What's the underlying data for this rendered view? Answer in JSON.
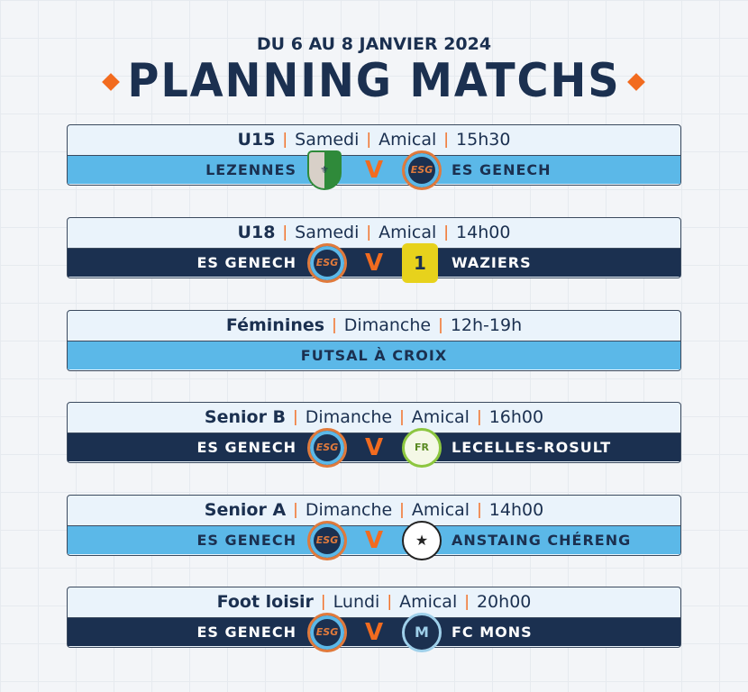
{
  "header": {
    "subtitle": "DU 6 AU 8 JANVIER 2024",
    "title": "PLANNING MATCHS"
  },
  "colors": {
    "navy": "#1b3050",
    "light_blue": "#5bb8e8",
    "orange": "#f26b1f"
  },
  "matches": [
    {
      "category": "U15",
      "details": [
        "Samedi",
        "Amical",
        "15h30"
      ],
      "bar": "light",
      "home": "LEZENNES",
      "home_logo": "lezennes-crest-icon",
      "vs": "V",
      "away": "ES GENECH",
      "away_logo": "esg-crest-icon"
    },
    {
      "category": "U18",
      "details": [
        "Samedi",
        "Amical",
        "14h00"
      ],
      "bar": "dark",
      "home": "ES GENECH",
      "home_logo": "esg-crest-icon",
      "vs": "V",
      "away": "WAZIERS",
      "away_logo": "waziers-jersey-icon"
    },
    {
      "category": "Féminines",
      "details": [
        "Dimanche",
        "12h-19h"
      ],
      "bar": "light",
      "center": "FUTSAL À CROIX"
    },
    {
      "category": "Senior B",
      "details": [
        "Dimanche",
        "Amical",
        "16h00"
      ],
      "bar": "dark",
      "home": "ES GENECH",
      "home_logo": "esg-crest-icon",
      "vs": "V",
      "away": "LECELLES-ROSULT",
      "away_logo": "lecelles-crest-icon"
    },
    {
      "category": "Senior A",
      "details": [
        "Dimanche",
        "Amical",
        "14h00"
      ],
      "bar": "light",
      "home": "ES GENECH",
      "home_logo": "esg-crest-icon",
      "vs": "V",
      "away": "ANSTAING CHÉRENG",
      "away_logo": "anstaing-crest-icon"
    },
    {
      "category": "Foot loisir",
      "details": [
        "Lundi",
        "Amical",
        "20h00"
      ],
      "bar": "dark",
      "home": "ES GENECH",
      "home_logo": "esg-crest-icon",
      "vs": "V",
      "away": "FC MONS",
      "away_logo": "fc-mons-crest-icon"
    }
  ]
}
